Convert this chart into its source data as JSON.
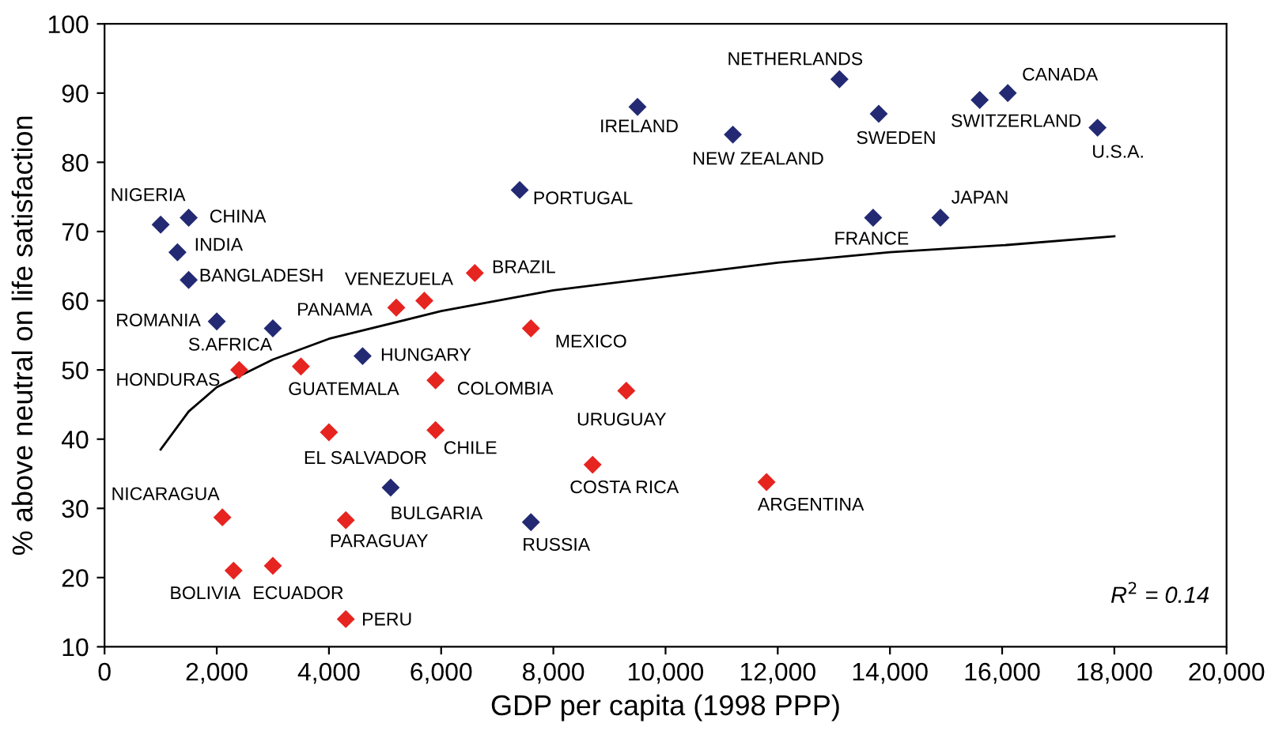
{
  "chart_data": {
    "type": "scatter",
    "xlabel": "GDP per capita (1998 PPP)",
    "ylabel": "% above neutral on life satisfaction",
    "xlim": [
      0,
      20000
    ],
    "ylim": [
      10,
      100
    ],
    "xticks": [
      0,
      {
        "value": 2000,
        "label": "2,000"
      },
      {
        "value": 4000,
        "label": "4,000"
      },
      {
        "value": 6000,
        "label": "6,000"
      },
      {
        "value": 8000,
        "label": "8,000"
      },
      {
        "value": 10000,
        "label": "10,000"
      },
      {
        "value": 12000,
        "label": "12,000"
      },
      {
        "value": 14000,
        "label": "14,000"
      },
      {
        "value": 16000,
        "label": "16,000"
      },
      {
        "value": 18000,
        "label": "18,000"
      },
      {
        "value": 20000,
        "label": "20,000"
      }
    ],
    "yticks": [
      10,
      20,
      30,
      40,
      50,
      60,
      70,
      80,
      90,
      100
    ],
    "marker": "diamond",
    "grid": false,
    "legend": false,
    "series": [
      {
        "color": "#232a73",
        "x": [
          1000,
          1500,
          1300,
          1500,
          2000,
          3000,
          4600,
          5100,
          7600,
          7400,
          9500,
          11200,
          13100,
          13800,
          13700,
          14900,
          15600,
          16100,
          17700
        ],
        "values": [
          71,
          72,
          67,
          63,
          57,
          56,
          52,
          33,
          28,
          76,
          88,
          84,
          92,
          87,
          72,
          72,
          89,
          90,
          85
        ]
      },
      {
        "color": "#e62420",
        "x": [
          5700,
          6600,
          5200,
          7600,
          2400,
          3500,
          5900,
          9300,
          4000,
          5900,
          8700,
          11800,
          2100,
          4300,
          2300,
          3000,
          4300
        ],
        "values": [
          60,
          64,
          59,
          56,
          50,
          50.5,
          48.5,
          47,
          41,
          41.3,
          36.3,
          33.8,
          28.7,
          28.3,
          21,
          21.7,
          14
        ]
      },
      {
        "type": "line",
        "color": "#000000",
        "marker": "none",
        "x": [
          1000,
          1500,
          2000,
          3000,
          4000,
          6000,
          8000,
          10000,
          12000,
          14000,
          16000,
          18000
        ],
        "values": [
          38.5,
          44,
          47.5,
          51.5,
          54.5,
          58.5,
          61.5,
          63.5,
          65.5,
          67,
          68,
          69.3
        ]
      }
    ],
    "annotations": [
      {
        "text": "NIGERIA",
        "x": 1000,
        "y": 71
      },
      {
        "text": "CHINA",
        "x": 1500,
        "y": 72
      },
      {
        "text": "INDIA",
        "x": 1300,
        "y": 67
      },
      {
        "text": "BANGLADESH",
        "x": 1500,
        "y": 63
      },
      {
        "text": "ROMANIA",
        "x": 2000,
        "y": 57
      },
      {
        "text": "S.AFRICA",
        "x": 3000,
        "y": 56
      },
      {
        "text": "HUNGARY",
        "x": 4600,
        "y": 52
      },
      {
        "text": "BULGARIA",
        "x": 5100,
        "y": 33
      },
      {
        "text": "RUSSIA",
        "x": 7600,
        "y": 28
      },
      {
        "text": "PORTUGAL",
        "x": 7400,
        "y": 76
      },
      {
        "text": "IRELAND",
        "x": 9500,
        "y": 88
      },
      {
        "text": "NEW ZEALAND",
        "x": 11200,
        "y": 84
      },
      {
        "text": "NETHERLANDS",
        "x": 13100,
        "y": 92
      },
      {
        "text": "SWEDEN",
        "x": 13800,
        "y": 87
      },
      {
        "text": "FRANCE",
        "x": 13700,
        "y": 72
      },
      {
        "text": "JAPAN",
        "x": 14900,
        "y": 72
      },
      {
        "text": "SWITZERLAND",
        "x": 15600,
        "y": 89
      },
      {
        "text": "CANADA",
        "x": 16100,
        "y": 90
      },
      {
        "text": "U.S.A.",
        "x": 17700,
        "y": 85
      },
      {
        "text": "VENEZUELA",
        "x": 5700,
        "y": 60
      },
      {
        "text": "BRAZIL",
        "x": 6600,
        "y": 64
      },
      {
        "text": "PANAMA",
        "x": 5200,
        "y": 59
      },
      {
        "text": "MEXICO",
        "x": 7600,
        "y": 56
      },
      {
        "text": "HONDURAS",
        "x": 2400,
        "y": 50
      },
      {
        "text": "GUATEMALA",
        "x": 3500,
        "y": 50.5
      },
      {
        "text": "COLOMBIA",
        "x": 5900,
        "y": 48.5
      },
      {
        "text": "URUGUAY",
        "x": 9300,
        "y": 47
      },
      {
        "text": "EL SALVADOR",
        "x": 4000,
        "y": 41
      },
      {
        "text": "CHILE",
        "x": 5900,
        "y": 41.3
      },
      {
        "text": "COSTA RICA",
        "x": 8700,
        "y": 36.3
      },
      {
        "text": "ARGENTINA",
        "x": 11800,
        "y": 33.8
      },
      {
        "text": "NICARAGUA",
        "x": 2100,
        "y": 28.7
      },
      {
        "text": "PARAGUAY",
        "x": 4300,
        "y": 28.3
      },
      {
        "text": "BOLIVIA",
        "x": 2300,
        "y": 21
      },
      {
        "text": "ECUADOR",
        "x": 3000,
        "y": 21.7
      },
      {
        "text": "PERU",
        "x": 4300,
        "y": 14
      },
      "R$^{2}$ = 0.14"
    ]
  }
}
